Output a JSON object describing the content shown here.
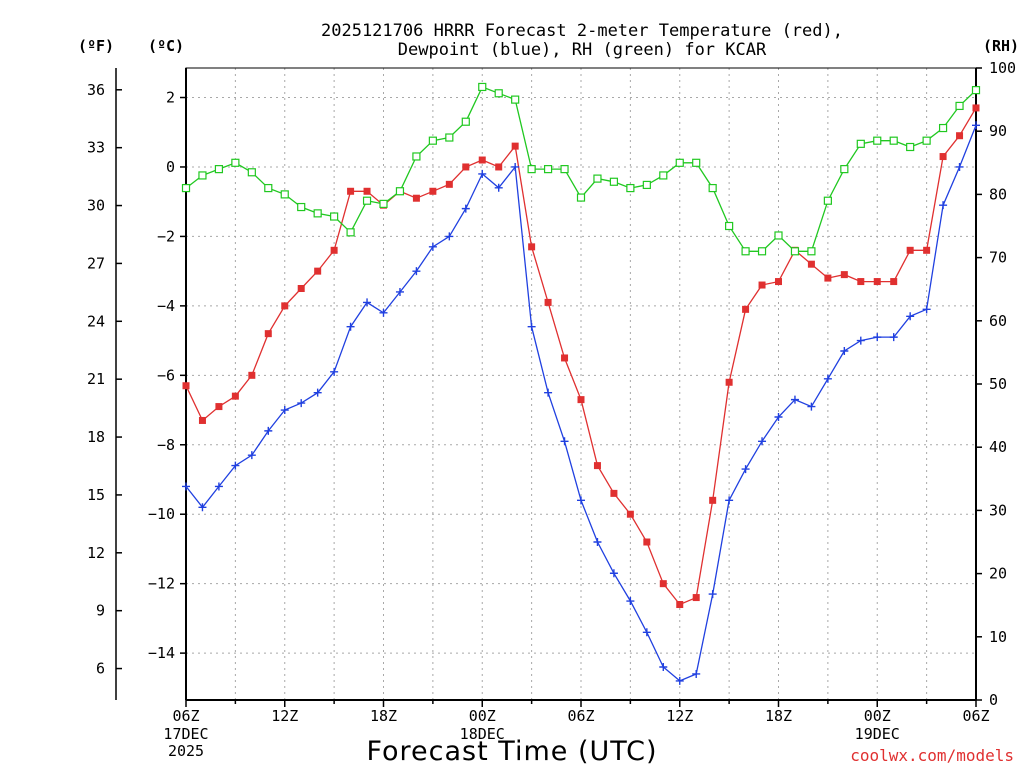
{
  "chart_data": {
    "type": "line",
    "title_lines": [
      "2025121706 HRRR Forecast 2-meter Temperature (red),",
      "Dewpoint (blue), RH (green) for KCAR"
    ],
    "xlabel": "Forecast Time (UTC)",
    "credit": "coolwx.com/models",
    "colors": {
      "temperature": "#e03030",
      "dewpoint": "#2040e0",
      "rh": "#20c820"
    },
    "units": {
      "left_outer": "(ºF)",
      "left_inner": "(ºC)",
      "right": "(RH)"
    },
    "x_range_hours": [
      0,
      48
    ],
    "x_ticks": [
      {
        "hour": 0,
        "label": "06Z",
        "sub": [
          "17DEC",
          "2025"
        ]
      },
      {
        "hour": 6,
        "label": "12Z",
        "sub": []
      },
      {
        "hour": 12,
        "label": "18Z",
        "sub": []
      },
      {
        "hour": 18,
        "label": "00Z",
        "sub": [
          "18DEC"
        ]
      },
      {
        "hour": 24,
        "label": "06Z",
        "sub": []
      },
      {
        "hour": 30,
        "label": "12Z",
        "sub": []
      },
      {
        "hour": 36,
        "label": "18Z",
        "sub": []
      },
      {
        "hour": 42,
        "label": "00Z",
        "sub": [
          "19DEC"
        ]
      },
      {
        "hour": 48,
        "label": "06Z",
        "sub": []
      }
    ],
    "celsius_axis": {
      "min": -15.35,
      "max": 2.85,
      "ticks": [
        2,
        0,
        -2,
        -4,
        -6,
        -8,
        -10,
        -12,
        -14
      ]
    },
    "fahrenheit_ticks": [
      36,
      33,
      30,
      27,
      24,
      21,
      18,
      15,
      12,
      9,
      6
    ],
    "rh_axis": {
      "min": 0,
      "max": 100,
      "ticks": [
        100,
        90,
        80,
        70,
        60,
        50,
        40,
        30,
        20,
        10,
        0
      ]
    },
    "series": [
      {
        "name": "Temperature",
        "unit": "C",
        "marker": "filled-square",
        "values": [
          -6.3,
          -7.3,
          -6.9,
          -6.6,
          -6.0,
          -4.8,
          -4.0,
          -3.5,
          -3.0,
          -2.4,
          -0.7,
          -0.7,
          -1.1,
          -0.7,
          -0.9,
          -0.7,
          -0.5,
          0.0,
          0.2,
          0.0,
          0.6,
          -2.3,
          -3.9,
          -5.5,
          -6.7,
          -8.6,
          -9.4,
          -10.0,
          -10.8,
          -12.0,
          -12.6,
          -12.4,
          -9.6,
          -6.2,
          -4.1,
          -3.4,
          -3.3,
          -2.4,
          -2.8,
          -3.2,
          -3.1,
          -3.3,
          -3.3,
          -3.3,
          -2.4,
          -2.4,
          0.3,
          0.9,
          1.7
        ]
      },
      {
        "name": "Dewpoint",
        "unit": "C",
        "marker": "plus",
        "values": [
          -9.2,
          -9.8,
          -9.2,
          -8.6,
          -8.3,
          -7.6,
          -7.0,
          -6.8,
          -6.5,
          -5.9,
          -4.6,
          -3.9,
          -4.2,
          -3.6,
          -3.0,
          -2.3,
          -2.0,
          -1.2,
          -0.2,
          -0.6,
          0.0,
          -4.6,
          -6.5,
          -7.9,
          -9.6,
          -10.8,
          -11.7,
          -12.5,
          -13.4,
          -14.4,
          -14.8,
          -14.6,
          -12.3,
          -9.6,
          -8.7,
          -7.9,
          -7.2,
          -6.7,
          -6.9,
          -6.1,
          -5.3,
          -5.0,
          -4.9,
          -4.9,
          -4.3,
          -4.1,
          -1.1,
          0.0,
          1.2
        ]
      },
      {
        "name": "RH",
        "unit": "%",
        "marker": "open-square",
        "values": [
          81,
          83,
          84,
          85,
          83.5,
          81,
          80,
          78,
          77,
          76.5,
          74,
          79,
          78.5,
          80.5,
          86,
          88.5,
          89,
          91.5,
          97,
          96,
          95,
          84,
          84,
          84,
          79.5,
          82.5,
          82,
          81,
          81.5,
          83,
          85,
          85,
          81,
          75,
          71,
          71,
          73.5,
          71,
          71,
          79,
          84,
          88,
          88.5,
          88.5,
          87.5,
          88.5,
          90.5,
          94,
          96.5
        ]
      }
    ]
  }
}
